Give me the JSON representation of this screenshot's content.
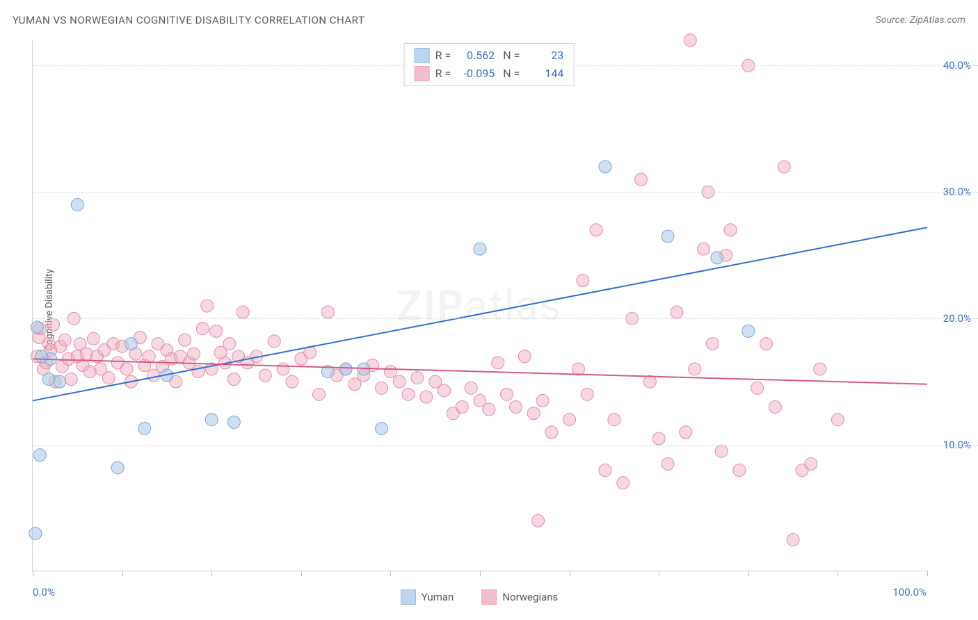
{
  "title": "YUMAN VS NORWEGIAN COGNITIVE DISABILITY CORRELATION CHART",
  "source": "Source: ZipAtlas.com",
  "y_axis_label": "Cognitive Disability",
  "watermark": {
    "part1": "ZIP",
    "part2": "atlas"
  },
  "chart": {
    "type": "scatter",
    "background_color": "#ffffff",
    "grid_color": "#d8d8d8",
    "xlim": [
      0,
      100
    ],
    "ylim": [
      0,
      42
    ],
    "x_ticks": [
      0,
      10,
      20,
      30,
      40,
      50,
      60,
      70,
      80,
      90,
      100
    ],
    "x_tick_labels": {
      "0": "0.0%",
      "100": "100.0%"
    },
    "y_ticks": [
      10,
      20,
      30,
      40
    ],
    "y_tick_labels": [
      "10.0%",
      "20.0%",
      "30.0%",
      "40.0%"
    ],
    "series": [
      {
        "name": "Yuman",
        "fill": "#a9c7ea",
        "stroke": "#7aa6d8",
        "fill_opacity": 0.55,
        "marker_radius": 9,
        "R": "0.562",
        "N": "23",
        "regression": {
          "x1": 0,
          "y1": 13.5,
          "x2": 100,
          "y2": 27.2,
          "color": "#2f6fd4",
          "width": 2
        },
        "points": [
          [
            0.3,
            3.0
          ],
          [
            0.8,
            9.2
          ],
          [
            1.8,
            15.2
          ],
          [
            3.0,
            15.0
          ],
          [
            2.0,
            16.8
          ],
          [
            5.0,
            29.0
          ],
          [
            9.5,
            8.2
          ],
          [
            12.5,
            11.3
          ],
          [
            11.0,
            18.0
          ],
          [
            15.0,
            15.5
          ],
          [
            20.0,
            12.0
          ],
          [
            22.5,
            11.8
          ],
          [
            33.0,
            15.8
          ],
          [
            35.0,
            16.0
          ],
          [
            37.0,
            16.0
          ],
          [
            39.0,
            11.3
          ],
          [
            50.0,
            25.5
          ],
          [
            64.0,
            32.0
          ],
          [
            71.0,
            26.5
          ],
          [
            76.5,
            24.8
          ],
          [
            80.0,
            19.0
          ],
          [
            0.5,
            19.3
          ],
          [
            1.0,
            17.0
          ]
        ]
      },
      {
        "name": "Norwegians",
        "fill": "#f0a8bb",
        "stroke": "#e48ca4",
        "fill_opacity": 0.45,
        "marker_radius": 9,
        "R": "-0.095",
        "N": "144",
        "regression": {
          "x1": 0,
          "y1": 16.8,
          "x2": 100,
          "y2": 14.8,
          "color": "#d65a80",
          "width": 2
        },
        "points": [
          [
            0.5,
            17.0
          ],
          [
            0.7,
            18.5
          ],
          [
            0.8,
            19.2
          ],
          [
            1.2,
            16.0
          ],
          [
            1.5,
            16.5
          ],
          [
            1.8,
            18.0
          ],
          [
            2.0,
            17.5
          ],
          [
            2.3,
            19.5
          ],
          [
            2.5,
            15.0
          ],
          [
            3.1,
            17.8
          ],
          [
            3.3,
            16.2
          ],
          [
            3.6,
            18.3
          ],
          [
            4.0,
            16.8
          ],
          [
            4.3,
            15.2
          ],
          [
            4.6,
            20.0
          ],
          [
            5.0,
            17.0
          ],
          [
            5.3,
            18.0
          ],
          [
            5.6,
            16.3
          ],
          [
            6.0,
            17.2
          ],
          [
            6.4,
            15.8
          ],
          [
            6.8,
            18.4
          ],
          [
            7.2,
            17.0
          ],
          [
            7.6,
            16.0
          ],
          [
            8.0,
            17.5
          ],
          [
            8.5,
            15.3
          ],
          [
            9.0,
            18.0
          ],
          [
            9.5,
            16.5
          ],
          [
            10.0,
            17.8
          ],
          [
            10.5,
            16.0
          ],
          [
            11.0,
            15.0
          ],
          [
            11.5,
            17.2
          ],
          [
            12.0,
            18.5
          ],
          [
            12.5,
            16.3
          ],
          [
            13.0,
            17.0
          ],
          [
            13.5,
            15.5
          ],
          [
            14.0,
            18.0
          ],
          [
            14.5,
            16.2
          ],
          [
            15.0,
            17.5
          ],
          [
            15.5,
            16.8
          ],
          [
            16.0,
            15.0
          ],
          [
            16.5,
            17.0
          ],
          [
            17.0,
            18.3
          ],
          [
            17.5,
            16.5
          ],
          [
            18.0,
            17.2
          ],
          [
            18.5,
            15.8
          ],
          [
            19.0,
            19.2
          ],
          [
            19.5,
            21.0
          ],
          [
            20.0,
            16.0
          ],
          [
            20.5,
            19.0
          ],
          [
            21.0,
            17.3
          ],
          [
            21.5,
            16.5
          ],
          [
            22.0,
            18.0
          ],
          [
            22.5,
            15.2
          ],
          [
            23.0,
            17.0
          ],
          [
            23.5,
            20.5
          ],
          [
            24.0,
            16.5
          ],
          [
            25.0,
            17.0
          ],
          [
            26.0,
            15.5
          ],
          [
            27.0,
            18.2
          ],
          [
            28.0,
            16.0
          ],
          [
            29.0,
            15.0
          ],
          [
            30.0,
            16.8
          ],
          [
            31.0,
            17.3
          ],
          [
            32.0,
            14.0
          ],
          [
            33.0,
            20.5
          ],
          [
            34.0,
            15.5
          ],
          [
            35.0,
            16.0
          ],
          [
            36.0,
            14.8
          ],
          [
            37.0,
            15.5
          ],
          [
            38.0,
            16.3
          ],
          [
            39.0,
            14.5
          ],
          [
            40.0,
            15.8
          ],
          [
            41.0,
            15.0
          ],
          [
            42.0,
            14.0
          ],
          [
            43.0,
            15.3
          ],
          [
            44.0,
            13.8
          ],
          [
            45.0,
            15.0
          ],
          [
            46.0,
            14.3
          ],
          [
            47.0,
            12.5
          ],
          [
            48.0,
            13.0
          ],
          [
            49.0,
            14.5
          ],
          [
            50.0,
            13.5
          ],
          [
            51.0,
            12.8
          ],
          [
            52.0,
            16.5
          ],
          [
            53.0,
            14.0
          ],
          [
            54.0,
            13.0
          ],
          [
            55.0,
            17.0
          ],
          [
            56.0,
            12.5
          ],
          [
            56.5,
            4.0
          ],
          [
            57.0,
            13.5
          ],
          [
            58.0,
            11.0
          ],
          [
            60.0,
            12.0
          ],
          [
            61.0,
            16.0
          ],
          [
            61.5,
            23.0
          ],
          [
            62.0,
            14.0
          ],
          [
            63.0,
            27.0
          ],
          [
            64.0,
            8.0
          ],
          [
            65.0,
            12.0
          ],
          [
            66.0,
            7.0
          ],
          [
            67.0,
            20.0
          ],
          [
            68.0,
            31.0
          ],
          [
            69.0,
            15.0
          ],
          [
            70.0,
            10.5
          ],
          [
            71.0,
            8.5
          ],
          [
            72.0,
            20.5
          ],
          [
            73.0,
            11.0
          ],
          [
            73.5,
            42.0
          ],
          [
            74.0,
            16.0
          ],
          [
            75.0,
            25.5
          ],
          [
            75.5,
            30.0
          ],
          [
            76.0,
            18.0
          ],
          [
            77.0,
            9.5
          ],
          [
            77.5,
            25.0
          ],
          [
            78.0,
            27.0
          ],
          [
            79.0,
            8.0
          ],
          [
            80.0,
            40.0
          ],
          [
            81.0,
            14.5
          ],
          [
            82.0,
            18.0
          ],
          [
            83.0,
            13.0
          ],
          [
            84.0,
            32.0
          ],
          [
            85.0,
            2.5
          ],
          [
            86.0,
            8.0
          ],
          [
            87.0,
            8.5
          ],
          [
            88.0,
            16.0
          ],
          [
            90.0,
            12.0
          ]
        ]
      }
    ]
  },
  "legend_bottom": [
    {
      "label": "Yuman",
      "fill": "#a9c7ea",
      "stroke": "#7aa6d8"
    },
    {
      "label": "Norwegians",
      "fill": "#f0a8bb",
      "stroke": "#e48ca4"
    }
  ]
}
